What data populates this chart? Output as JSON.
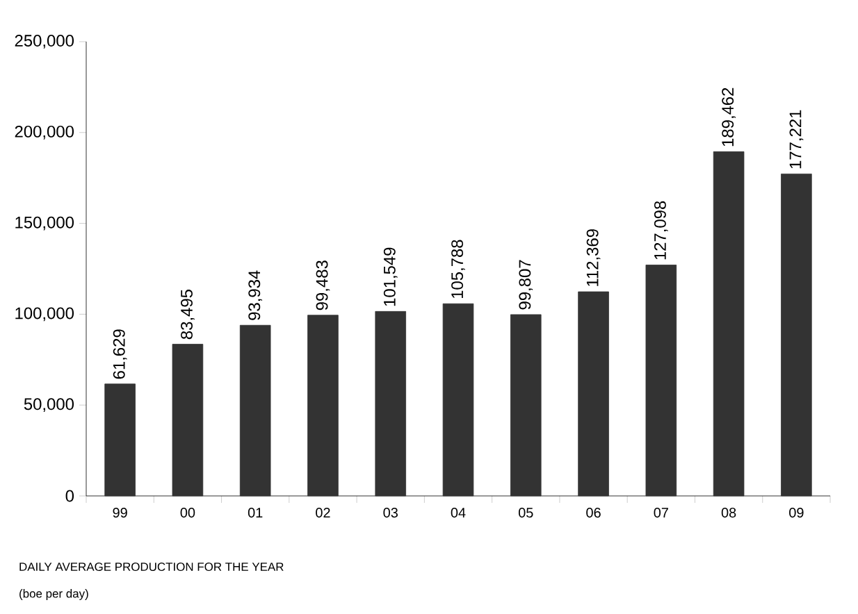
{
  "chart_data": {
    "type": "bar",
    "categories": [
      "99",
      "00",
      "01",
      "02",
      "03",
      "04",
      "05",
      "06",
      "07",
      "08",
      "09"
    ],
    "values": [
      61629,
      83495,
      93934,
      99483,
      101549,
      105788,
      99807,
      112369,
      127098,
      189462,
      177221
    ],
    "value_labels": [
      "61,629",
      "83,495",
      "93,934",
      "99,483",
      "101,549",
      "105,788",
      "99,807",
      "112,369",
      "127,098",
      "189,462",
      "177,221"
    ],
    "color": "#333333",
    "grid": false,
    "ylim": [
      0,
      250000
    ],
    "yticks": [
      {
        "value": 0,
        "label": "0"
      },
      {
        "value": 50000,
        "label": "50,000"
      },
      {
        "value": 100000,
        "label": "100,000"
      },
      {
        "value": 150000,
        "label": "150,000"
      },
      {
        "value": 200000,
        "label": "200,000"
      },
      {
        "value": 250000,
        "label": "250,000"
      }
    ],
    "xlabel": "DAILY AVERAGE PRODUCTION FOR THE YEAR",
    "annotations": [
      "(boe per day)"
    ]
  }
}
